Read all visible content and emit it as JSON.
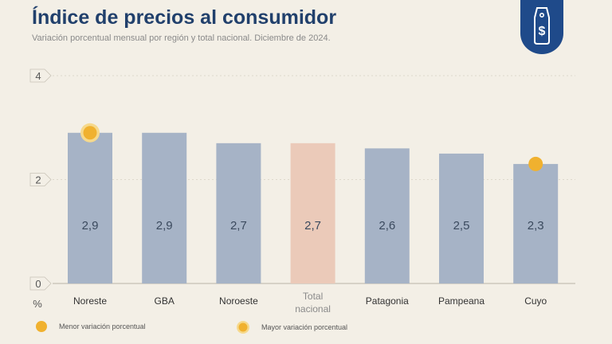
{
  "header": {
    "title": "Índice de precios al consumidor",
    "subtitle": "Variación porcentual mensual por región y total nacional. Diciembre de 2024."
  },
  "badge": {
    "icon": "price-tag-dollar-icon",
    "glyph": "$",
    "color": "#1f4a8a"
  },
  "colors": {
    "bar": "#a6b3c6",
    "highlight_bar": "#ebcab9",
    "marker": "#f0b12f",
    "axis_text": "#555555",
    "label_text": "#3b4a5e"
  },
  "legend": [
    {
      "label": "Menor variación porcentual",
      "marker": "filled-dot"
    },
    {
      "label": "Mayor variación porcentual",
      "marker": "ringed-dot"
    }
  ],
  "chart_data": {
    "type": "bar",
    "title": "Índice de precios al consumidor",
    "subtitle": "Variación porcentual mensual por región y total nacional. Diciembre de 2024.",
    "categories": [
      "Noreste",
      "GBA",
      "Noroeste",
      "Total nacional",
      "Patagonia",
      "Pampeana",
      "Cuyo"
    ],
    "values": [
      2.9,
      2.9,
      2.7,
      2.7,
      2.6,
      2.5,
      2.3
    ],
    "value_labels": [
      "2,9",
      "2,9",
      "2,7",
      "2,7",
      "2,6",
      "2,5",
      "2,3"
    ],
    "highlight_category": "Total nacional",
    "ylabel": "%",
    "ylim": [
      0,
      4
    ],
    "yticks": [
      0,
      2,
      4
    ],
    "grid": true,
    "annotations": [
      {
        "category": "Noreste",
        "marker": "ringed-dot",
        "meaning": "Mayor variación porcentual"
      },
      {
        "category": "Cuyo",
        "marker": "filled-dot",
        "meaning": "Menor variación porcentual"
      }
    ]
  }
}
